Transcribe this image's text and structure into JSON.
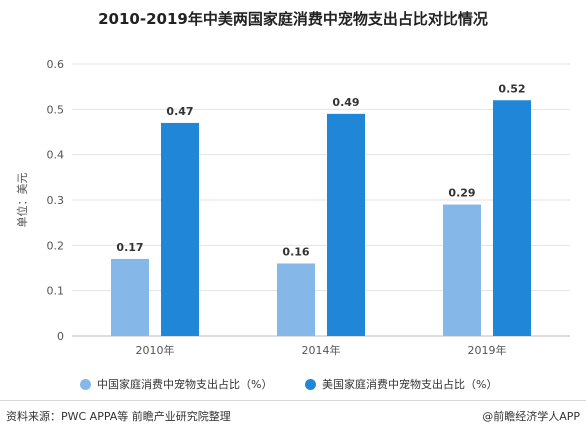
{
  "colors": {
    "series1": "#85b7e8",
    "series2": "#1f86d8",
    "grid": "#e3e3e3",
    "axis": "#bbbbbb",
    "label": "#555555"
  },
  "chart_data": {
    "type": "bar",
    "title": "2010-2019年中美两国家庭消费中宠物支出占比对比情况",
    "ylabel": "单位：美元",
    "xlabel": "",
    "categories": [
      "2010年",
      "2014年",
      "2019年"
    ],
    "series": [
      {
        "name": "中国家庭消费中宠物支出占比（%）",
        "values": [
          0.17,
          0.16,
          0.29
        ],
        "value_labels": [
          "0.17",
          "0.16",
          "0.29"
        ]
      },
      {
        "name": "美国家庭消费中宠物支出占比（%）",
        "values": [
          0.47,
          0.49,
          0.52
        ],
        "value_labels": [
          "0.47",
          "0.49",
          "0.52"
        ]
      }
    ],
    "ylim": [
      0,
      0.6
    ],
    "yticks": [
      "0",
      "0.1",
      "0.2",
      "0.3",
      "0.4",
      "0.5",
      "0.6"
    ],
    "grid": true,
    "legend_position": "bottom"
  },
  "footer": {
    "source": "资料来源：PWC APPA等 前瞻产业研究院整理",
    "brand": "@前瞻经济学人APP"
  }
}
